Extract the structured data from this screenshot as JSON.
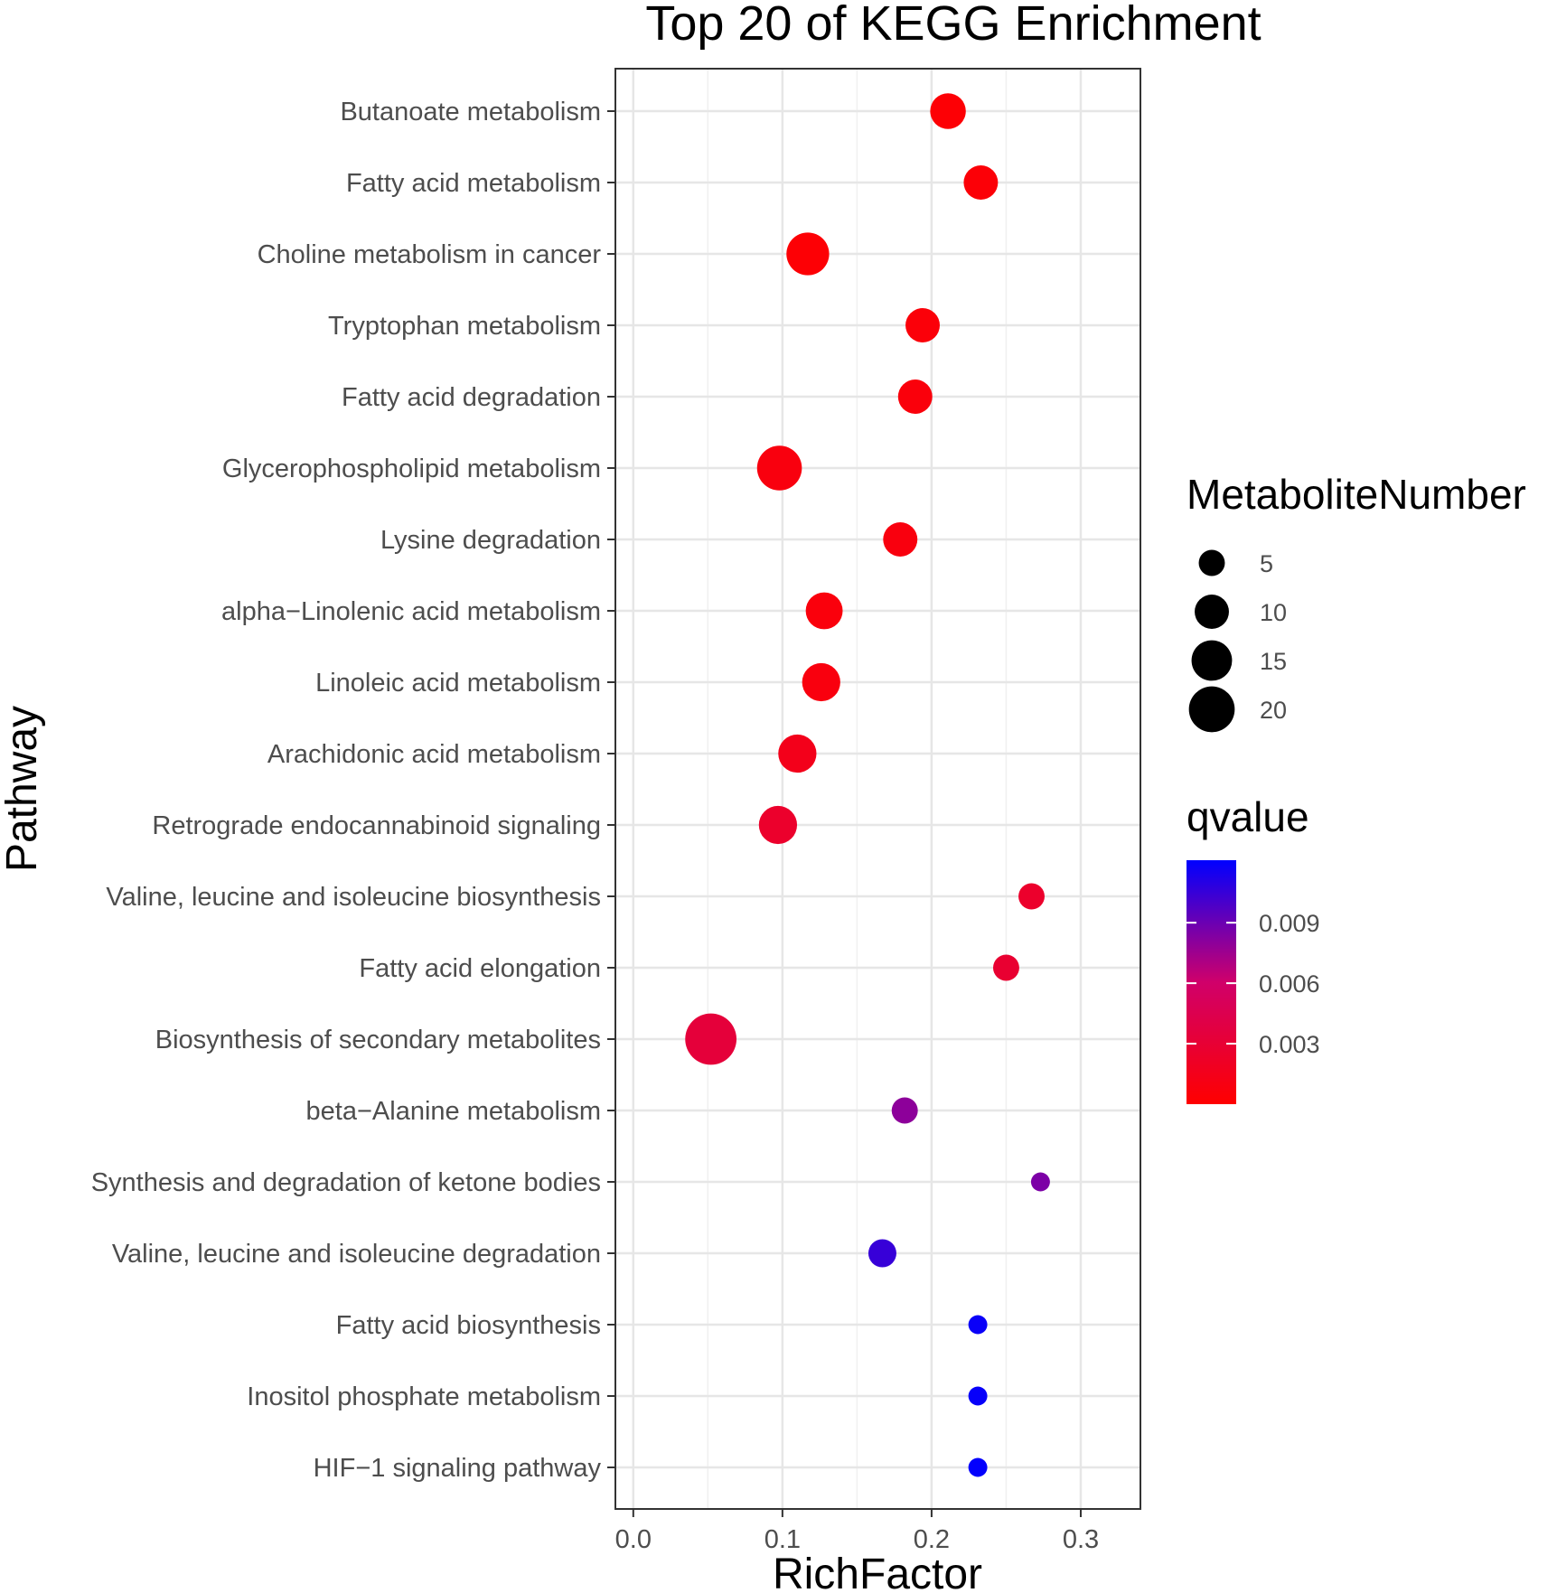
{
  "chart_data": {
    "type": "scatter",
    "title": "Top 20 of KEGG Enrichment",
    "xlabel": "RichFactor",
    "ylabel": "Pathway",
    "xlim": [
      -0.012,
      0.34
    ],
    "x_ticks": [
      0.0,
      0.1,
      0.2,
      0.3
    ],
    "x_tick_labels": [
      "0.0",
      "0.1",
      "0.2",
      "0.3"
    ],
    "grid": true,
    "points": [
      {
        "pathway": "Butanoate metabolism",
        "x": 0.211,
        "size": 11,
        "qvalue": 0.0003
      },
      {
        "pathway": "Fatty acid metabolism",
        "x": 0.233,
        "size": 10,
        "qvalue": 0.0004
      },
      {
        "pathway": "Choline metabolism in cancer",
        "x": 0.117,
        "size": 17,
        "qvalue": 0.0003
      },
      {
        "pathway": "Tryptophan metabolism",
        "x": 0.194,
        "size": 10,
        "qvalue": 0.0005
      },
      {
        "pathway": "Fatty acid degradation",
        "x": 0.189,
        "size": 10,
        "qvalue": 0.0006
      },
      {
        "pathway": "Glycerophospholipid metabolism",
        "x": 0.098,
        "size": 19,
        "qvalue": 0.0008
      },
      {
        "pathway": "Lysine degradation",
        "x": 0.179,
        "size": 10,
        "qvalue": 0.0008
      },
      {
        "pathway": "alpha−Linolenic acid metabolism",
        "x": 0.128,
        "size": 12,
        "qvalue": 0.0007
      },
      {
        "pathway": "Linoleic acid metabolism",
        "x": 0.126,
        "size": 13,
        "qvalue": 0.0008
      },
      {
        "pathway": "Arachidonic acid metabolism",
        "x": 0.11,
        "size": 13,
        "qvalue": 0.0015
      },
      {
        "pathway": "Retrograde endocannabinoid signaling",
        "x": 0.097,
        "size": 13,
        "qvalue": 0.0025
      },
      {
        "pathway": "Valine, leucine and isoleucine biosynthesis",
        "x": 0.267,
        "size": 5,
        "qvalue": 0.0025
      },
      {
        "pathway": "Fatty acid elongation",
        "x": 0.25,
        "size": 5,
        "qvalue": 0.0028
      },
      {
        "pathway": "Biosynthesis of secondary metabolites",
        "x": 0.052,
        "size": 26,
        "qvalue": 0.0033
      },
      {
        "pathway": "beta−Alanine metabolism",
        "x": 0.182,
        "size": 5,
        "qvalue": 0.008
      },
      {
        "pathway": "Synthesis and degradation of ketone bodies",
        "x": 0.273,
        "size": 2,
        "qvalue": 0.0085
      },
      {
        "pathway": "Valine, leucine and isoleucine degradation",
        "x": 0.167,
        "size": 6,
        "qvalue": 0.0105
      },
      {
        "pathway": "Fatty acid biosynthesis",
        "x": 0.231,
        "size": 2,
        "qvalue": 0.0118
      },
      {
        "pathway": "Inositol phosphate metabolism",
        "x": 0.231,
        "size": 2,
        "qvalue": 0.0119
      },
      {
        "pathway": "HIF−1 signaling pathway",
        "x": 0.231,
        "size": 2,
        "qvalue": 0.012
      }
    ],
    "size_legend": {
      "title": "MetaboliteNumber",
      "breaks": [
        5,
        10,
        15,
        20
      ],
      "labels": [
        "5",
        "10",
        "15",
        "20"
      ]
    },
    "color_legend": {
      "title": "qvalue",
      "range": [
        0.0,
        0.0121
      ],
      "breaks": [
        0.003,
        0.006,
        0.009
      ],
      "labels": [
        "0.003",
        "0.006",
        "0.009"
      ],
      "low_color": "#ff0000",
      "high_color": "#0000ff"
    }
  }
}
